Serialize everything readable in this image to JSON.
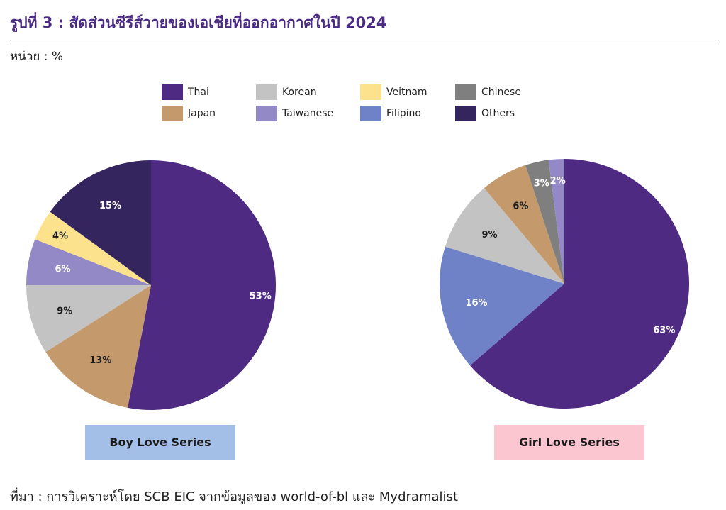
{
  "header": {
    "title": "รูปที่ 3 : สัดส่วนซีรีส์วายของเอเชียที่ออกอากาศในปี 2024",
    "unit": "หน่วย : %"
  },
  "legend": [
    {
      "label": "Thai",
      "color": "#4e2a82"
    },
    {
      "label": "Korean",
      "color": "#c3c3c3"
    },
    {
      "label": "Veitnam",
      "color": "#fde28e"
    },
    {
      "label": "Chinese",
      "color": "#7f7f7f"
    },
    {
      "label": "Japan",
      "color": "#c49a6c"
    },
    {
      "label": "Taiwanese",
      "color": "#9489c7"
    },
    {
      "label": "Filipino",
      "color": "#6f82c8"
    },
    {
      "label": "Others",
      "color": "#35255e"
    }
  ],
  "chart_data": [
    {
      "type": "pie",
      "title": "Boy Love Series",
      "caption_color": "#a3bfe8",
      "slices": [
        {
          "label": "Thai",
          "value": 53,
          "color": "#4e2a82",
          "text_color": "#ffffff"
        },
        {
          "label": "Japan",
          "value": 13,
          "color": "#c49a6c",
          "text_color": "#1a1a1a"
        },
        {
          "label": "Korean",
          "value": 9,
          "color": "#c3c3c3",
          "text_color": "#1a1a1a"
        },
        {
          "label": "Taiwanese",
          "value": 6,
          "color": "#9489c7",
          "text_color": "#ffffff"
        },
        {
          "label": "Veitnam",
          "value": 4,
          "color": "#fde28e",
          "text_color": "#1a1a1a"
        },
        {
          "label": "Others",
          "value": 15,
          "color": "#35255e",
          "text_color": "#ffffff"
        }
      ]
    },
    {
      "type": "pie",
      "title": "Girl Love Series",
      "caption_color": "#fbc6d0",
      "slices": [
        {
          "label": "Thai",
          "value": 63,
          "color": "#4e2a82",
          "text_color": "#ffffff"
        },
        {
          "label": "Filipino",
          "value": 16,
          "color": "#6f82c8",
          "text_color": "#ffffff"
        },
        {
          "label": "Korean",
          "value": 9,
          "color": "#c3c3c3",
          "text_color": "#1a1a1a"
        },
        {
          "label": "Japan",
          "value": 6,
          "color": "#c49a6c",
          "text_color": "#1a1a1a"
        },
        {
          "label": "Chinese",
          "value": 3,
          "color": "#7f7f7f",
          "text_color": "#ffffff"
        },
        {
          "label": "Taiwanese",
          "value": 2,
          "color": "#9489c7",
          "text_color": "#ffffff"
        }
      ]
    }
  ],
  "source": "ที่มา : การวิเคราะห์โดย SCB EIC จากข้อมูลของ world-of-bl และ Mydramalist"
}
